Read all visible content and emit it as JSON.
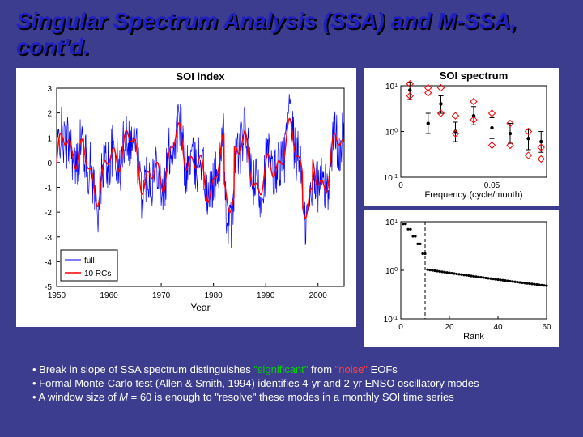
{
  "title": "Singular Spectrum Analysis (SSA) and M-SSA, cont'd.",
  "left_chart": {
    "title": "SOI index",
    "xlabel": "Year",
    "xlim": [
      1950,
      2005
    ],
    "xticks": [
      1950,
      1960,
      1970,
      1980,
      1990,
      2000
    ],
    "ylim": [
      -5,
      3
    ],
    "yticks": [
      -5,
      -4,
      -3,
      -2,
      -1,
      0,
      1,
      2,
      3
    ],
    "legend": [
      {
        "label": "full",
        "color": "#0000ff"
      },
      {
        "label": "10 RCs",
        "color": "#ff0000"
      }
    ],
    "colors": {
      "full": "#0000ff",
      "rc": "#ff0000",
      "box": "#000000",
      "bg": "#ffffff"
    },
    "title_fontsize": 13,
    "label_fontsize": 12,
    "tick_fontsize": 10
  },
  "top_right_chart": {
    "title": "SOI spectrum",
    "xlabel": "Frequency (cycle/month)",
    "xlim": [
      0,
      0.08
    ],
    "xticks": [
      0,
      0.05
    ],
    "ylim_exp": [
      -1,
      1
    ],
    "yticks_exp": [
      -1,
      0,
      1
    ],
    "colors": {
      "marker": "#000000",
      "diamond": "#ff0000",
      "bg": "#ffffff"
    },
    "title_fontsize": 13,
    "label_fontsize": 11,
    "points": [
      {
        "f": 0.005,
        "y": 8,
        "lo": 5,
        "hi": 12,
        "d1": 11,
        "d2": 6
      },
      {
        "f": 0.015,
        "y": 1.5,
        "lo": 0.9,
        "hi": 2.5,
        "d1": 9,
        "d2": 7
      },
      {
        "f": 0.022,
        "y": 4,
        "lo": 2.5,
        "hi": 6,
        "d1": 9,
        "d2": 2.5
      },
      {
        "f": 0.03,
        "y": 1,
        "lo": 0.6,
        "hi": 1.6,
        "d1": 2.2,
        "d2": 0.9
      },
      {
        "f": 0.04,
        "y": 2.2,
        "lo": 1.4,
        "hi": 3.5,
        "d1": 4.5,
        "d2": 1.8
      },
      {
        "f": 0.05,
        "y": 1.2,
        "lo": 0.7,
        "hi": 2,
        "d1": 2.5,
        "d2": 0.5
      },
      {
        "f": 0.06,
        "y": 0.9,
        "lo": 0.55,
        "hi": 1.5,
        "d1": 0.5,
        "d2": 1.5
      },
      {
        "f": 0.07,
        "y": 0.7,
        "lo": 0.4,
        "hi": 1.1,
        "d1": 0.3,
        "d2": 1.0
      },
      {
        "f": 0.077,
        "y": 0.6,
        "lo": 0.35,
        "hi": 1,
        "d1": 0.25,
        "d2": 0.45
      }
    ]
  },
  "bottom_right_chart": {
    "xlabel": "Rank",
    "xlim": [
      0,
      60
    ],
    "xticks": [
      0,
      20,
      40,
      60
    ],
    "ylim_exp": [
      -1,
      1
    ],
    "yticks_exp": [
      -1,
      0,
      1
    ],
    "dashed_x": 10,
    "colors": {
      "marker": "#000000",
      "dash": "#000000",
      "bg": "#ffffff"
    },
    "label_fontsize": 11
  },
  "bullets": [
    {
      "pre": "Break in slope of SSA spectrum distinguishes ",
      "sig": "\"significant\"",
      "mid": " from ",
      "noi": "\"noise\"",
      "post": " EOFs"
    },
    {
      "text": "Formal Monte-Carlo test (Allen & Smith, 1994) identifies 4-yr and 2-yr ENSO oscillatory modes"
    },
    {
      "pre": "A window size of ",
      "ital": "M",
      "post": " = 60 is enough to \"resolve\" these modes in a monthly SOI time series"
    }
  ]
}
